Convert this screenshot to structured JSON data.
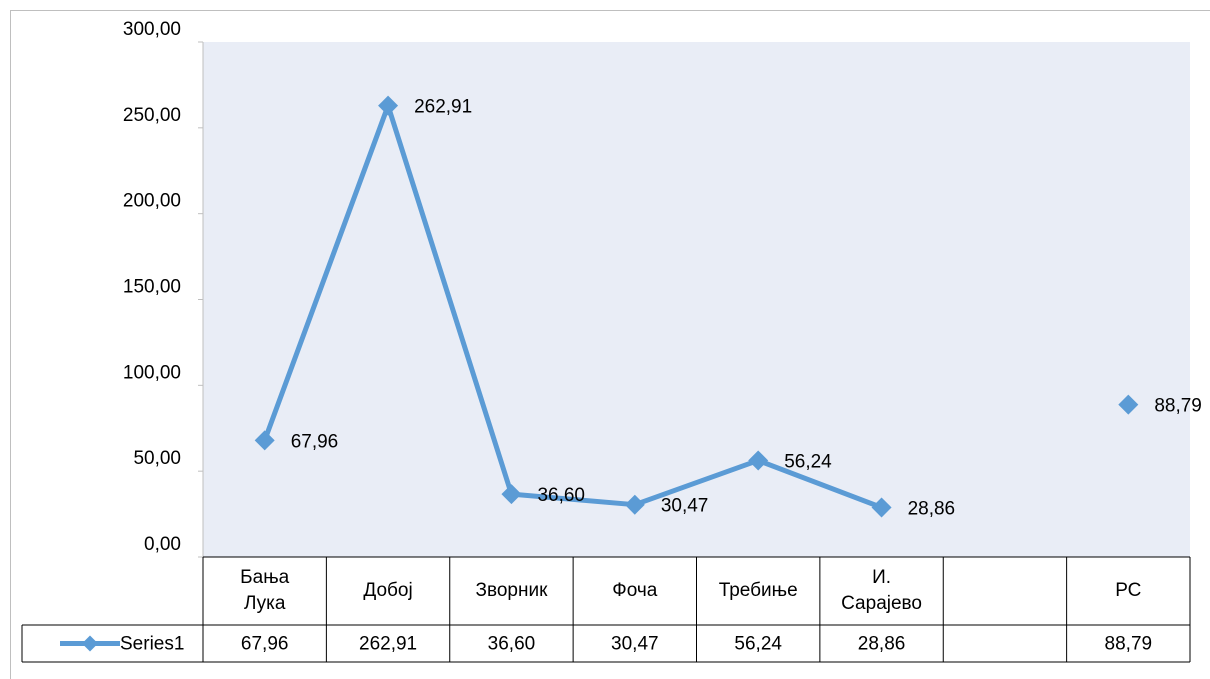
{
  "chart_data": {
    "type": "line",
    "categories": [
      "Бања Лука",
      "Добој",
      "Зворник",
      "Фоча",
      "Требиње",
      "И. Сарајево",
      null,
      "РС"
    ],
    "series": [
      {
        "name": "Series1",
        "color": "#5b9bd5",
        "values": [
          67.96,
          262.91,
          36.6,
          30.47,
          56.24,
          28.86,
          null,
          88.79
        ],
        "value_labels": [
          "67,96",
          "262,91",
          "36,60",
          "30,47",
          "56,24",
          "28,86",
          null,
          "88,79"
        ]
      }
    ],
    "ylim": [
      0,
      300
    ],
    "yticks": [
      {
        "value": 0,
        "label": "0,00"
      },
      {
        "value": 50,
        "label": "50,00"
      },
      {
        "value": 100,
        "label": "100,00"
      },
      {
        "value": 150,
        "label": "150,00"
      },
      {
        "value": 200,
        "label": "200,00"
      },
      {
        "value": 250,
        "label": "250,00"
      },
      {
        "value": 300,
        "label": "300,00"
      }
    ],
    "plot_background": "#e9edf6",
    "data_table": true
  }
}
